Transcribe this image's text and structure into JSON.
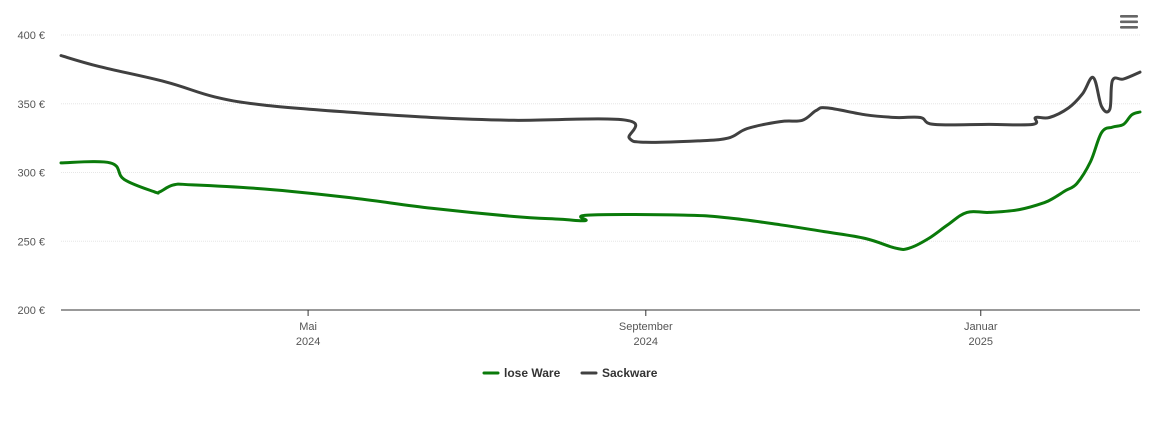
{
  "menu": {
    "icon": "hamburger-menu-icon"
  },
  "chart_data": {
    "type": "line",
    "title": "",
    "xlabel": "",
    "ylabel": "",
    "ylim": [
      200,
      400
    ],
    "y_ticks": [
      {
        "value": 200,
        "label": "200 €"
      },
      {
        "value": 250,
        "label": "250 €"
      },
      {
        "value": 300,
        "label": "300 €"
      },
      {
        "value": 350,
        "label": "350 €"
      },
      {
        "value": 400,
        "label": "400 €"
      }
    ],
    "xlim": [
      "2024-02-01",
      "2025-02-28"
    ],
    "x_ticks": [
      {
        "date": "2024-05-01",
        "label": "Mai",
        "year": "2024"
      },
      {
        "date": "2024-09-01",
        "label": "September",
        "year": "2024"
      },
      {
        "date": "2025-01-01",
        "label": "Januar",
        "year": "2025"
      }
    ],
    "grid": true,
    "legend": "bottom-center",
    "series": [
      {
        "name": "lose Ware",
        "color": "#0a7a0a",
        "points": [
          [
            "2024-02-01",
            307
          ],
          [
            "2024-02-19",
            307
          ],
          [
            "2024-02-24",
            295
          ],
          [
            "2024-03-06",
            286
          ],
          [
            "2024-03-08",
            286
          ],
          [
            "2024-03-13",
            291
          ],
          [
            "2024-03-20",
            291
          ],
          [
            "2024-04-15",
            288
          ],
          [
            "2024-05-15",
            282
          ],
          [
            "2024-06-15",
            274
          ],
          [
            "2024-07-15",
            268
          ],
          [
            "2024-08-01",
            266
          ],
          [
            "2024-08-10",
            265
          ],
          [
            "2024-08-11",
            269
          ],
          [
            "2024-09-15",
            269
          ],
          [
            "2024-10-01",
            267
          ],
          [
            "2024-10-20",
            262
          ],
          [
            "2024-11-05",
            257
          ],
          [
            "2024-11-20",
            252
          ],
          [
            "2024-12-01",
            245
          ],
          [
            "2024-12-06",
            245
          ],
          [
            "2024-12-13",
            252
          ],
          [
            "2024-12-20",
            262
          ],
          [
            "2024-12-27",
            271
          ],
          [
            "2025-01-04",
            271
          ],
          [
            "2025-01-15",
            273
          ],
          [
            "2025-01-24",
            278
          ],
          [
            "2025-01-28",
            282
          ],
          [
            "2025-02-01",
            287
          ],
          [
            "2025-02-05",
            292
          ],
          [
            "2025-02-10",
            308
          ],
          [
            "2025-02-14",
            329
          ],
          [
            "2025-02-18",
            333
          ],
          [
            "2025-02-22",
            335
          ],
          [
            "2025-02-25",
            342
          ],
          [
            "2025-02-28",
            344
          ]
        ]
      },
      {
        "name": "Sackware",
        "color": "#404040",
        "points": [
          [
            "2024-02-01",
            385
          ],
          [
            "2024-02-15",
            377
          ],
          [
            "2024-03-10",
            366
          ],
          [
            "2024-03-28",
            355
          ],
          [
            "2024-04-15",
            349
          ],
          [
            "2024-05-15",
            344
          ],
          [
            "2024-06-15",
            340
          ],
          [
            "2024-07-15",
            338
          ],
          [
            "2024-08-25",
            338
          ],
          [
            "2024-08-26",
            325
          ],
          [
            "2024-09-01",
            322
          ],
          [
            "2024-09-20",
            323
          ],
          [
            "2024-10-01",
            325
          ],
          [
            "2024-10-08",
            332
          ],
          [
            "2024-10-20",
            337
          ],
          [
            "2024-10-28",
            338
          ],
          [
            "2024-11-02",
            345
          ],
          [
            "2024-11-06",
            347
          ],
          [
            "2024-11-20",
            342
          ],
          [
            "2024-12-01",
            340
          ],
          [
            "2024-12-10",
            340
          ],
          [
            "2024-12-15",
            335
          ],
          [
            "2025-01-04",
            335
          ],
          [
            "2025-01-20",
            335
          ],
          [
            "2025-01-21",
            340
          ],
          [
            "2025-01-26",
            340
          ],
          [
            "2025-02-02",
            347
          ],
          [
            "2025-02-07",
            357
          ],
          [
            "2025-02-11",
            369
          ],
          [
            "2025-02-14",
            348
          ],
          [
            "2025-02-17",
            346
          ],
          [
            "2025-02-18",
            367
          ],
          [
            "2025-02-22",
            368
          ],
          [
            "2025-02-28",
            373
          ]
        ]
      }
    ]
  }
}
